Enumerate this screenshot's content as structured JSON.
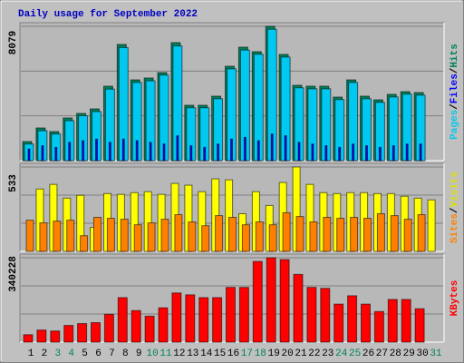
{
  "chart_data": [
    {
      "type": "bar",
      "title": "Daily usage for September 2022",
      "title_color": "#0000c0",
      "categories": [
        "1",
        "2",
        "3",
        "4",
        "5",
        "6",
        "7",
        "8",
        "9",
        "10",
        "11",
        "12",
        "13",
        "14",
        "15",
        "16",
        "17",
        "18",
        "19",
        "20",
        "21",
        "22",
        "23",
        "24",
        "25",
        "26",
        "27",
        "28",
        "29",
        "30",
        "31"
      ],
      "category_colors": [
        "#000000",
        "#000000",
        "#00805c",
        "#00805c",
        "#000000",
        "#000000",
        "#000000",
        "#000000",
        "#000000",
        "#00805c",
        "#00805c",
        "#000000",
        "#000000",
        "#000000",
        "#000000",
        "#000000",
        "#00805c",
        "#00805c",
        "#000000",
        "#000000",
        "#000000",
        "#000000",
        "#000000",
        "#00805c",
        "#00805c",
        "#000000",
        "#000000",
        "#000000",
        "#000000",
        "#000000",
        "#00805c"
      ],
      "legend_separator": "/",
      "series": [
        {
          "name": "Pages",
          "color": "#00c8f0",
          "values": [
            1000,
            1800,
            1600,
            2400,
            2700,
            2950,
            4300,
            6800,
            4700,
            4800,
            5150,
            6900,
            3180,
            3180,
            3720,
            5520,
            6650,
            6400,
            7900,
            6230,
            4380,
            4320,
            4320,
            3670,
            4700,
            3720,
            3500,
            3830,
            4000,
            3940,
            null
          ]
        },
        {
          "name": "Files",
          "color": "#0000ff",
          "values": [
            700,
            900,
            800,
            1100,
            1200,
            1300,
            1100,
            1300,
            1200,
            1100,
            1000,
            1500,
            900,
            800,
            1000,
            1300,
            1400,
            1200,
            1600,
            1500,
            1100,
            1000,
            900,
            800,
            1000,
            900,
            800,
            900,
            1000,
            1000,
            null
          ]
        },
        {
          "name": "Hits",
          "color": "#00805c",
          "values": [
            1147,
            1966,
            1747,
            2566,
            2839,
            3112,
            4477,
            6989,
            4859,
            4969,
            5296,
            7098,
            3331,
            3331,
            3877,
            5678,
            6825,
            6552,
            8079,
            6388,
            4532,
            4477,
            4477,
            3822,
            4859,
            3877,
            3658,
            3986,
            4150,
            4095,
            null
          ]
        }
      ],
      "ylim": [
        0,
        8079
      ],
      "yticks": [
        8079
      ]
    },
    {
      "type": "bar",
      "legend_separator": "/",
      "series": [
        {
          "name": "Sites",
          "color": "#ff8000",
          "values": [
            197,
            180,
            191,
            197,
            99,
            215,
            209,
            203,
            168,
            180,
            203,
            232,
            186,
            162,
            226,
            215,
            168,
            186,
            168,
            244,
            220,
            186,
            215,
            209,
            215,
            209,
            238,
            226,
            203,
            232,
            null
          ]
        },
        {
          "name": "Visits",
          "color": "#ffff00",
          "values": [
            394,
            423,
            336,
            354,
            151,
            365,
            360,
            371,
            377,
            360,
            429,
            418,
            377,
            458,
            452,
            238,
            377,
            290,
            435,
            533,
            423,
            371,
            365,
            371,
            371,
            365,
            365,
            348,
            336,
            325,
            null
          ]
        }
      ],
      "ylim": [
        0,
        533
      ],
      "yticks": [
        533
      ]
    },
    {
      "type": "bar",
      "series": [
        {
          "name": "KBytes",
          "color": "#ff0000",
          "values": [
            29912,
            48607,
            44868,
            67302,
            74780,
            78519,
            112170,
            179472,
            127126,
            104692,
            138343,
            198167,
            190689,
            179472,
            179472,
            220601,
            220601,
            325293,
            340228,
            332771,
            272947,
            220601,
            216862,
            153299,
            186950,
            153299,
            123387,
            171994,
            171994,
            134604,
            null
          ]
        }
      ],
      "ylim": [
        0,
        340228
      ],
      "yticks": [
        340228
      ]
    }
  ]
}
